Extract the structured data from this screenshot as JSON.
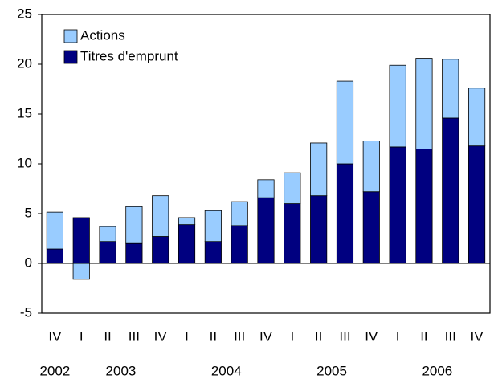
{
  "chart_data": {
    "type": "stacked_bar",
    "categories": [
      "IV",
      "I",
      "II",
      "III",
      "IV",
      "I",
      "II",
      "III",
      "IV",
      "I",
      "II",
      "III",
      "IV",
      "I",
      "II",
      "III",
      "IV"
    ],
    "category_groups": [
      {
        "label": "2002",
        "count": 1
      },
      {
        "label": "2003",
        "count": 4
      },
      {
        "label": "2004",
        "count": 4
      },
      {
        "label": "2005",
        "count": 4
      },
      {
        "label": "2006",
        "count": 4
      }
    ],
    "series": [
      {
        "name": "Titres d'emprunt",
        "color": "#000080",
        "values": [
          1.45,
          4.6,
          2.2,
          2.0,
          2.7,
          3.9,
          2.2,
          3.8,
          6.6,
          6.0,
          6.8,
          10.0,
          7.2,
          11.7,
          11.5,
          14.6,
          11.8
        ]
      },
      {
        "name": "Actions",
        "color": "#99ccff",
        "values": [
          3.7,
          -1.6,
          1.5,
          3.7,
          4.1,
          0.7,
          3.1,
          2.4,
          1.8,
          3.1,
          5.3,
          8.3,
          5.1,
          8.2,
          9.1,
          5.9,
          5.8
        ]
      }
    ],
    "legend_order": [
      1,
      0
    ],
    "ylim": [
      -5,
      25
    ],
    "yticks": [
      -5,
      0,
      5,
      10,
      15,
      20,
      25
    ],
    "legend": "top-left"
  }
}
